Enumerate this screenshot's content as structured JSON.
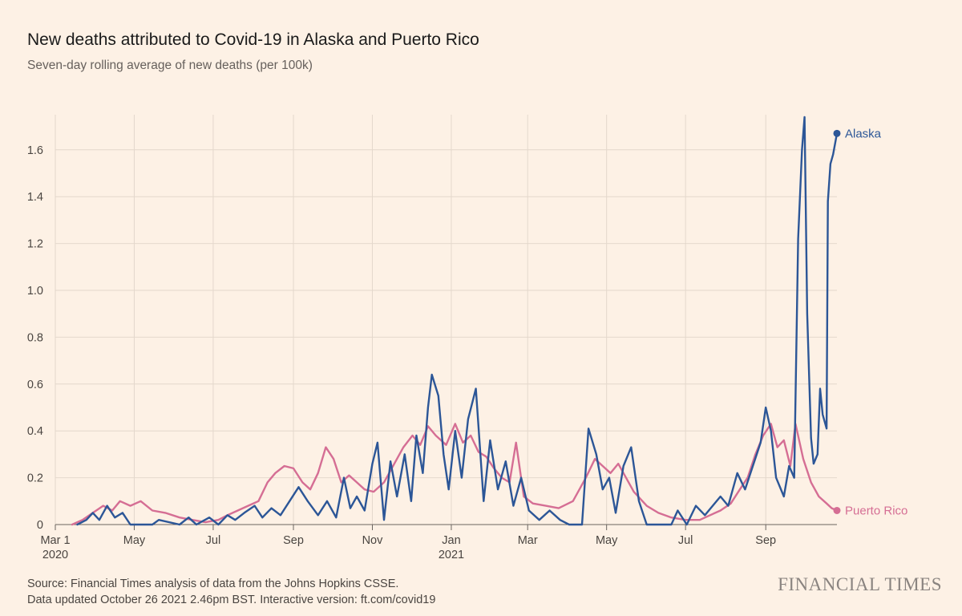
{
  "title": "New deaths attributed to Covid-19 in Alaska and Puerto Rico",
  "subtitle": "Seven-day rolling average of new deaths (per 100k)",
  "footer": {
    "source": "Source: Financial Times analysis of data from the Johns Hopkins CSSE.",
    "updated": "Data updated October 26 2021 2.46pm BST. Interactive version: ft.com/covid19"
  },
  "brand": "FINANCIAL TIMES",
  "chart_data": {
    "type": "line",
    "title": "New deaths attributed to Covid-19 in Alaska and Puerto Rico",
    "subtitle": "Seven-day rolling average of new deaths (per 100k)",
    "ylim": [
      0,
      1.75
    ],
    "yticks": [
      0,
      0.2,
      0.4,
      0.6,
      0.8,
      1.0,
      1.2,
      1.4,
      1.6
    ],
    "ytick_labels": [
      "0",
      "0.2",
      "0.4",
      "0.6",
      "0.8",
      "1.0",
      "1.2",
      "1.4",
      "1.6"
    ],
    "xlim": [
      "2020-03-01",
      "2021-10-26"
    ],
    "xticks": [
      {
        "date": "2020-03-01",
        "label": "Mar 1",
        "year": "2020"
      },
      {
        "date": "2020-05-01",
        "label": "May",
        "year": ""
      },
      {
        "date": "2020-07-01",
        "label": "Jul",
        "year": ""
      },
      {
        "date": "2020-09-01",
        "label": "Sep",
        "year": ""
      },
      {
        "date": "2020-11-01",
        "label": "Nov",
        "year": ""
      },
      {
        "date": "2021-01-01",
        "label": "Jan",
        "year": "2021"
      },
      {
        "date": "2021-03-01",
        "label": "Mar",
        "year": ""
      },
      {
        "date": "2021-05-01",
        "label": "May",
        "year": ""
      },
      {
        "date": "2021-07-01",
        "label": "Jul",
        "year": ""
      },
      {
        "date": "2021-09-01",
        "label": "Sep",
        "year": ""
      }
    ],
    "grid": true,
    "series": [
      {
        "name": "Alaska",
        "color": "#2c5697",
        "points": [
          [
            "2020-03-18",
            0.0
          ],
          [
            "2020-03-25",
            0.02
          ],
          [
            "2020-03-30",
            0.05
          ],
          [
            "2020-04-04",
            0.02
          ],
          [
            "2020-04-10",
            0.08
          ],
          [
            "2020-04-16",
            0.03
          ],
          [
            "2020-04-22",
            0.05
          ],
          [
            "2020-04-28",
            0.0
          ],
          [
            "2020-05-15",
            0.0
          ],
          [
            "2020-05-20",
            0.02
          ],
          [
            "2020-06-05",
            0.0
          ],
          [
            "2020-06-12",
            0.03
          ],
          [
            "2020-06-18",
            0.0
          ],
          [
            "2020-06-28",
            0.03
          ],
          [
            "2020-07-05",
            0.0
          ],
          [
            "2020-07-12",
            0.04
          ],
          [
            "2020-07-18",
            0.02
          ],
          [
            "2020-07-25",
            0.05
          ],
          [
            "2020-08-02",
            0.08
          ],
          [
            "2020-08-08",
            0.03
          ],
          [
            "2020-08-15",
            0.07
          ],
          [
            "2020-08-22",
            0.04
          ],
          [
            "2020-08-29",
            0.1
          ],
          [
            "2020-09-05",
            0.16
          ],
          [
            "2020-09-12",
            0.1
          ],
          [
            "2020-09-20",
            0.04
          ],
          [
            "2020-09-27",
            0.1
          ],
          [
            "2020-10-04",
            0.03
          ],
          [
            "2020-10-10",
            0.2
          ],
          [
            "2020-10-15",
            0.07
          ],
          [
            "2020-10-20",
            0.12
          ],
          [
            "2020-10-26",
            0.06
          ],
          [
            "2020-11-01",
            0.26
          ],
          [
            "2020-11-05",
            0.35
          ],
          [
            "2020-11-10",
            0.02
          ],
          [
            "2020-11-15",
            0.27
          ],
          [
            "2020-11-20",
            0.12
          ],
          [
            "2020-11-26",
            0.3
          ],
          [
            "2020-12-01",
            0.1
          ],
          [
            "2020-12-05",
            0.38
          ],
          [
            "2020-12-10",
            0.22
          ],
          [
            "2020-12-14",
            0.5
          ],
          [
            "2020-12-17",
            0.64
          ],
          [
            "2020-12-22",
            0.55
          ],
          [
            "2020-12-26",
            0.3
          ],
          [
            "2020-12-30",
            0.15
          ],
          [
            "2021-01-04",
            0.4
          ],
          [
            "2021-01-09",
            0.2
          ],
          [
            "2021-01-14",
            0.45
          ],
          [
            "2021-01-20",
            0.58
          ],
          [
            "2021-01-26",
            0.1
          ],
          [
            "2021-01-31",
            0.36
          ],
          [
            "2021-02-06",
            0.15
          ],
          [
            "2021-02-12",
            0.27
          ],
          [
            "2021-02-18",
            0.08
          ],
          [
            "2021-02-24",
            0.2
          ],
          [
            "2021-03-02",
            0.06
          ],
          [
            "2021-03-10",
            0.02
          ],
          [
            "2021-03-18",
            0.06
          ],
          [
            "2021-03-26",
            0.02
          ],
          [
            "2021-04-02",
            0.0
          ],
          [
            "2021-04-12",
            0.0
          ],
          [
            "2021-04-17",
            0.41
          ],
          [
            "2021-04-23",
            0.3
          ],
          [
            "2021-04-28",
            0.15
          ],
          [
            "2021-05-03",
            0.2
          ],
          [
            "2021-05-08",
            0.05
          ],
          [
            "2021-05-14",
            0.25
          ],
          [
            "2021-05-20",
            0.33
          ],
          [
            "2021-05-26",
            0.1
          ],
          [
            "2021-06-01",
            0.0
          ],
          [
            "2021-06-20",
            0.0
          ],
          [
            "2021-06-25",
            0.06
          ],
          [
            "2021-07-02",
            0.0
          ],
          [
            "2021-07-09",
            0.08
          ],
          [
            "2021-07-16",
            0.04
          ],
          [
            "2021-07-22",
            0.08
          ],
          [
            "2021-07-28",
            0.12
          ],
          [
            "2021-08-03",
            0.08
          ],
          [
            "2021-08-10",
            0.22
          ],
          [
            "2021-08-16",
            0.15
          ],
          [
            "2021-08-22",
            0.25
          ],
          [
            "2021-08-28",
            0.35
          ],
          [
            "2021-09-01",
            0.5
          ],
          [
            "2021-09-05",
            0.4
          ],
          [
            "2021-09-09",
            0.2
          ],
          [
            "2021-09-15",
            0.12
          ],
          [
            "2021-09-19",
            0.25
          ],
          [
            "2021-09-23",
            0.2
          ],
          [
            "2021-09-26",
            1.22
          ],
          [
            "2021-09-29",
            1.6
          ],
          [
            "2021-10-01",
            1.74
          ],
          [
            "2021-10-03",
            0.9
          ],
          [
            "2021-10-06",
            0.37
          ],
          [
            "2021-10-08",
            0.26
          ],
          [
            "2021-10-11",
            0.3
          ],
          [
            "2021-10-13",
            0.58
          ],
          [
            "2021-10-15",
            0.47
          ],
          [
            "2021-10-18",
            0.41
          ],
          [
            "2021-10-19",
            1.38
          ],
          [
            "2021-10-21",
            1.54
          ],
          [
            "2021-10-23",
            1.58
          ],
          [
            "2021-10-26",
            1.67
          ]
        ],
        "end_label": "Alaska",
        "end_value": 1.67
      },
      {
        "name": "Puerto Rico",
        "color": "#d56e94",
        "points": [
          [
            "2020-03-14",
            0.0
          ],
          [
            "2020-03-22",
            0.02
          ],
          [
            "2020-03-30",
            0.05
          ],
          [
            "2020-04-07",
            0.08
          ],
          [
            "2020-04-14",
            0.06
          ],
          [
            "2020-04-20",
            0.1
          ],
          [
            "2020-04-28",
            0.08
          ],
          [
            "2020-05-06",
            0.1
          ],
          [
            "2020-05-15",
            0.06
          ],
          [
            "2020-05-25",
            0.05
          ],
          [
            "2020-06-05",
            0.03
          ],
          [
            "2020-06-15",
            0.02
          ],
          [
            "2020-06-25",
            0.01
          ],
          [
            "2020-07-05",
            0.02
          ],
          [
            "2020-07-12",
            0.04
          ],
          [
            "2020-07-20",
            0.06
          ],
          [
            "2020-07-28",
            0.08
          ],
          [
            "2020-08-05",
            0.1
          ],
          [
            "2020-08-12",
            0.18
          ],
          [
            "2020-08-18",
            0.22
          ],
          [
            "2020-08-25",
            0.25
          ],
          [
            "2020-09-01",
            0.24
          ],
          [
            "2020-09-08",
            0.18
          ],
          [
            "2020-09-14",
            0.15
          ],
          [
            "2020-09-20",
            0.22
          ],
          [
            "2020-09-26",
            0.33
          ],
          [
            "2020-10-02",
            0.28
          ],
          [
            "2020-10-08",
            0.18
          ],
          [
            "2020-10-14",
            0.21
          ],
          [
            "2020-10-20",
            0.18
          ],
          [
            "2020-10-26",
            0.15
          ],
          [
            "2020-11-02",
            0.14
          ],
          [
            "2020-11-10",
            0.18
          ],
          [
            "2020-11-18",
            0.26
          ],
          [
            "2020-11-25",
            0.33
          ],
          [
            "2020-12-02",
            0.38
          ],
          [
            "2020-12-08",
            0.34
          ],
          [
            "2020-12-14",
            0.42
          ],
          [
            "2020-12-20",
            0.38
          ],
          [
            "2020-12-28",
            0.34
          ],
          [
            "2021-01-04",
            0.43
          ],
          [
            "2021-01-10",
            0.35
          ],
          [
            "2021-01-16",
            0.38
          ],
          [
            "2021-01-22",
            0.31
          ],
          [
            "2021-01-28",
            0.29
          ],
          [
            "2021-02-03",
            0.24
          ],
          [
            "2021-02-09",
            0.2
          ],
          [
            "2021-02-15",
            0.18
          ],
          [
            "2021-02-20",
            0.35
          ],
          [
            "2021-02-26",
            0.12
          ],
          [
            "2021-03-05",
            0.09
          ],
          [
            "2021-03-15",
            0.08
          ],
          [
            "2021-03-25",
            0.07
          ],
          [
            "2021-04-05",
            0.1
          ],
          [
            "2021-04-15",
            0.2
          ],
          [
            "2021-04-22",
            0.28
          ],
          [
            "2021-04-28",
            0.25
          ],
          [
            "2021-05-04",
            0.22
          ],
          [
            "2021-05-10",
            0.26
          ],
          [
            "2021-05-16",
            0.2
          ],
          [
            "2021-05-22",
            0.14
          ],
          [
            "2021-06-01",
            0.08
          ],
          [
            "2021-06-10",
            0.05
          ],
          [
            "2021-06-20",
            0.03
          ],
          [
            "2021-07-01",
            0.02
          ],
          [
            "2021-07-12",
            0.02
          ],
          [
            "2021-07-20",
            0.04
          ],
          [
            "2021-07-28",
            0.06
          ],
          [
            "2021-08-05",
            0.09
          ],
          [
            "2021-08-12",
            0.15
          ],
          [
            "2021-08-18",
            0.2
          ],
          [
            "2021-08-24",
            0.3
          ],
          [
            "2021-08-30",
            0.38
          ],
          [
            "2021-09-05",
            0.43
          ],
          [
            "2021-09-10",
            0.33
          ],
          [
            "2021-09-15",
            0.36
          ],
          [
            "2021-09-20",
            0.25
          ],
          [
            "2021-09-24",
            0.43
          ],
          [
            "2021-09-30",
            0.28
          ],
          [
            "2021-10-06",
            0.18
          ],
          [
            "2021-10-12",
            0.12
          ],
          [
            "2021-10-18",
            0.09
          ],
          [
            "2021-10-22",
            0.07
          ],
          [
            "2021-10-26",
            0.06
          ]
        ],
        "end_label": "Puerto Rico",
        "end_value": 0.06
      }
    ]
  }
}
